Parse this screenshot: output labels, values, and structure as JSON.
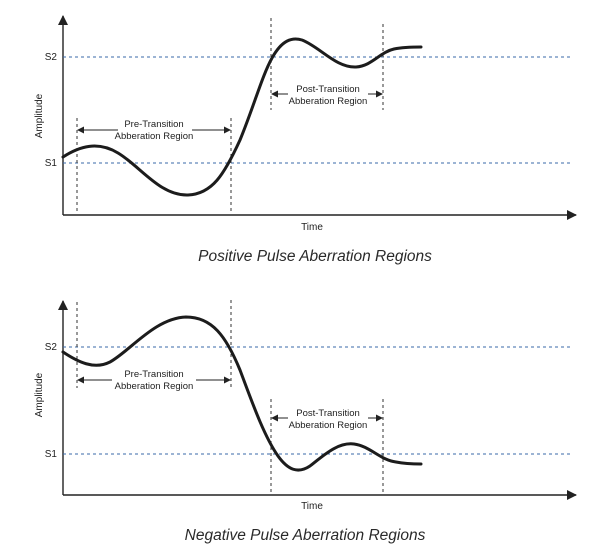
{
  "panels": [
    {
      "s2_label": "S2",
      "s1_label": "S1",
      "y_axis_label": "Amplitude",
      "x_axis_label": "Time",
      "pre_region": {
        "line1": "Pre-Transition",
        "line2": "Abberation Region"
      },
      "post_region": {
        "line1": "Post-Transition",
        "line2": "Abberation Region"
      },
      "caption": "Positive Pulse Aberration Regions"
    },
    {
      "s2_label": "S2",
      "s1_label": "S1",
      "y_axis_label": "Amplitude",
      "x_axis_label": "Time",
      "pre_region": {
        "line1": "Pre-Transition",
        "line2": "Abberation Region"
      },
      "post_region": {
        "line1": "Post-Transition",
        "line2": "Abberation Region"
      },
      "caption": "Negative Pulse Aberration Regions"
    }
  ]
}
